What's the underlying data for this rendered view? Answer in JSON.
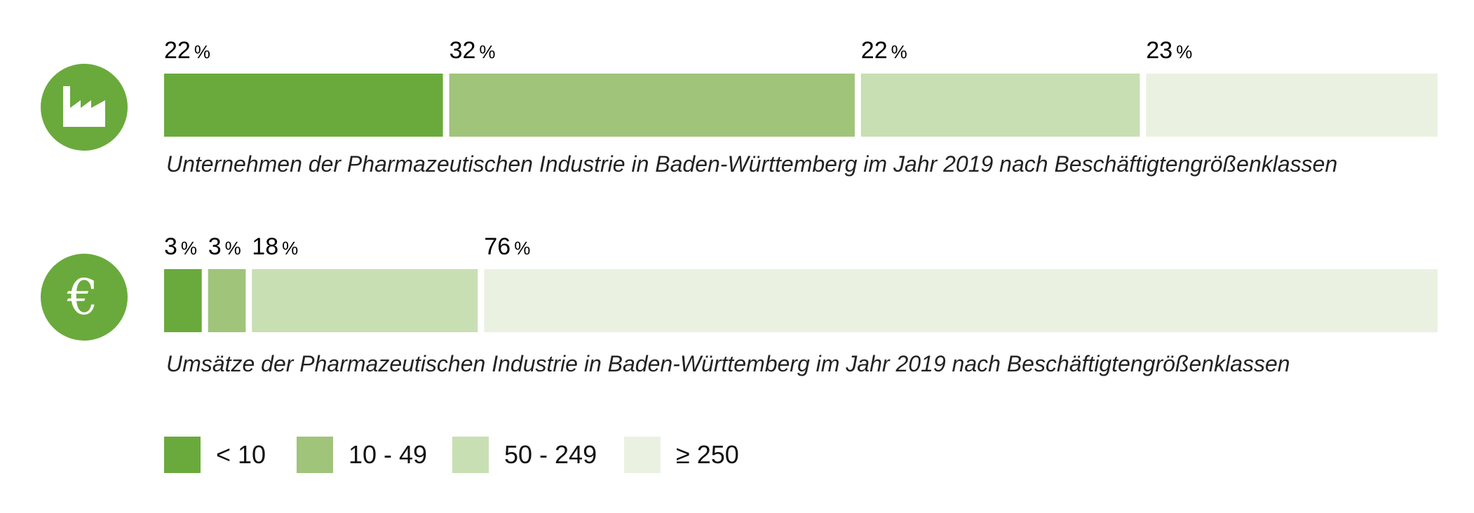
{
  "chart_data": [
    {
      "type": "bar",
      "orientation": "horizontal-stacked-100",
      "icon": "factory-icon",
      "caption": "Unternehmen der Pharmazeutischen Industrie in Baden-Württemberg im Jahr 2019 nach Beschäftigtengrößenklassen",
      "categories": [
        "< 10",
        "10 - 49",
        "50 - 249",
        "≥ 250"
      ],
      "values": [
        22,
        32,
        22,
        23
      ],
      "labels": [
        "22",
        "32",
        "22",
        "23"
      ],
      "unit": "%"
    },
    {
      "type": "bar",
      "orientation": "horizontal-stacked-100",
      "icon": "euro-icon",
      "caption": "Umsätze der Pharmazeutischen Industrie in Baden-Württemberg im Jahr 2019 nach Beschäftigtengrößenklassen",
      "categories": [
        "< 10",
        "10 - 49",
        "50 - 249",
        "≥ 250"
      ],
      "values": [
        3,
        3,
        18,
        76
      ],
      "labels": [
        "3",
        "3",
        "18",
        "76"
      ],
      "unit": "%"
    }
  ],
  "legend": {
    "placement": "bottom-left",
    "items": [
      {
        "label": "< 10",
        "color": "#6aaa3c"
      },
      {
        "label": "10 - 49",
        "color": "#9fc47a"
      },
      {
        "label": "50 - 249",
        "color": "#c8dfb3"
      },
      {
        "label": "≥ 250",
        "color": "#eaf1e1"
      }
    ]
  },
  "icon_symbols": {
    "euro": "€"
  },
  "colors": {
    "accent": "#6aaa3c",
    "icon_bg": "#6aaa3c",
    "icon_fg": "#ffffff"
  }
}
